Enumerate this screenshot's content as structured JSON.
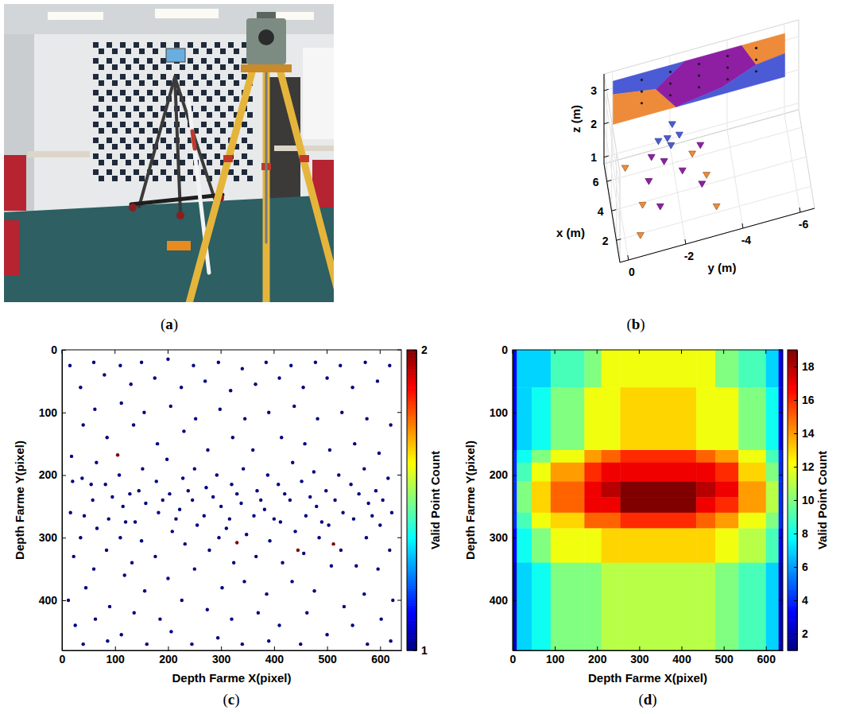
{
  "chart_data": [
    {
      "type": "image",
      "caption": "(a)"
    },
    {
      "type": "scatter3d",
      "caption": "(b)",
      "xlabel": "x (m)",
      "ylabel": "y (m)",
      "zlabel": "z (m)",
      "xlim": [
        0.5,
        7.2
      ],
      "ylim": [
        -6.5,
        0.3
      ],
      "zlim": [
        0.8,
        3.5
      ],
      "xticks": [
        2,
        4,
        6
      ],
      "yticks": [
        0,
        -2,
        -4,
        -6
      ],
      "zticks": [
        1,
        2,
        3
      ],
      "grid": true,
      "series": [
        {
          "color": "#ED8B3A",
          "x": [
            1.5,
            2.0,
            3.0,
            5.5,
            5.0,
            3.8
          ],
          "y": [
            -0.5,
            -3.2,
            -0.7,
            -0.3,
            -2.6,
            -3.0
          ],
          "z": [
            1.0,
            1.0,
            1.2,
            1.3,
            1.4,
            1.2
          ]
        },
        {
          "color": "#8E1FA3",
          "x": [
            2.8,
            3.3,
            4.0,
            4.3,
            4.8,
            5.3,
            5.2
          ],
          "y": [
            -1.3,
            -2.8,
            -1.0,
            -2.2,
            -1.6,
            -1.2,
            -2.9
          ],
          "z": [
            1.1,
            1.2,
            1.4,
            1.3,
            1.5,
            1.5,
            1.5
          ]
        },
        {
          "color": "#4B5BD6",
          "x": [
            5.8,
            6.0,
            5.6,
            6.2,
            5.5
          ],
          "y": [
            -1.8,
            -1.5,
            -2.2,
            -2.0,
            -1.9
          ],
          "z": [
            1.7,
            1.6,
            1.8,
            1.9,
            1.6
          ]
        }
      ],
      "plane_x": 7,
      "regions": [
        {
          "color": "#4B5BD6",
          "y": [
            0,
            -2.5,
            -1.5,
            0
          ],
          "z": [
            3.3,
            3.3,
            2.7,
            2.9
          ]
        },
        {
          "color": "#ED8B3A",
          "y": [
            0,
            -1.5,
            -2.2,
            0
          ],
          "z": [
            2.9,
            2.7,
            2.0,
            2.0
          ]
        },
        {
          "color": "#8E1FA3",
          "y": [
            -1.5,
            -2.5,
            -4.5,
            -5,
            -3.8,
            -2.2
          ],
          "z": [
            2.7,
            3.3,
            3.3,
            2.6,
            2.2,
            2.0
          ]
        },
        {
          "color": "#ED8B3A",
          "y": [
            -4.5,
            -6,
            -6,
            -5
          ],
          "z": [
            3.3,
            3.3,
            2.7,
            2.6
          ]
        },
        {
          "color": "#4B5BD6",
          "y": [
            -2.2,
            -3.8,
            -5,
            -6,
            -6
          ],
          "z": [
            2.0,
            2.2,
            2.6,
            2.7,
            2.0
          ]
        }
      ],
      "targets": {
        "y": [
          -1,
          -2,
          -3,
          -4,
          -5,
          -1,
          -2,
          -3,
          -4,
          -5,
          -1,
          -2,
          -3,
          -4,
          -5
        ],
        "z": [
          2.4,
          2.4,
          2.4,
          2.4,
          2.4,
          2.75,
          2.75,
          2.75,
          2.75,
          2.75,
          3.1,
          3.1,
          3.1,
          3.1,
          3.1
        ]
      }
    },
    {
      "type": "scatter",
      "caption": "(c)",
      "xlabel": "Depth Farme X(pixel)",
      "ylabel": "Depth Farme Y(pixel)",
      "xlim": [
        0,
        640
      ],
      "ylim": [
        480,
        0
      ],
      "xticks": [
        0,
        100,
        200,
        300,
        400,
        500,
        600
      ],
      "yticks": [
        0,
        100,
        200,
        300,
        400
      ],
      "series": [
        {
          "count": 1,
          "x": [
            15,
            18,
            20,
            16,
            22,
            12,
            25,
            35,
            40,
            38,
            42,
            35,
            45,
            40,
            60,
            62,
            65,
            58,
            66,
            60,
            63,
            80,
            85,
            82,
            88,
            84,
            90,
            86,
            110,
            112,
            108,
            115,
            110,
            118,
            112,
            130,
            135,
            128,
            138,
            132,
            136,
            150,
            155,
            152,
            158,
            150,
            156,
            160,
            175,
            180,
            178,
            182,
            176,
            185,
            200,
            205,
            198,
            203,
            208,
            200,
            206,
            225,
            230,
            228,
            222,
            232,
            226,
            248,
            252,
            250,
            246,
            255,
            250,
            245,
            270,
            275,
            272,
            268,
            278,
            274,
            295,
            298,
            292,
            300,
            296,
            302,
            294,
            318,
            322,
            320,
            316,
            324,
            320,
            340,
            345,
            342,
            338,
            348,
            344,
            340,
            365,
            360,
            368,
            362,
            366,
            370,
            385,
            390,
            388,
            382,
            392,
            386,
            390,
            410,
            414,
            408,
            412,
            416,
            410,
            432,
            438,
            435,
            430,
            440,
            434,
            455,
            458,
            452,
            460,
            456,
            462,
            450,
            478,
            482,
            475,
            480,
            485,
            476,
            500,
            505,
            498,
            503,
            508,
            500,
            525,
            528,
            522,
            530,
            526,
            532,
            548,
            552,
            545,
            550,
            555,
            548,
            572,
            575,
            570,
            578,
            574,
            570,
            576,
            595,
            598,
            592,
            600,
            596,
            602,
            618,
            620,
            615,
            622,
            618,
            624,
            620,
            55,
            95,
            145,
            190,
            238,
            285,
            330,
            375,
            420,
            468,
            515,
            560,
            605,
            120,
            215,
            310,
            400,
            490,
            585
          ],
          "y": [
            25,
            170,
            210,
            260,
            330,
            400,
            440,
            60,
            120,
            205,
            265,
            300,
            380,
            470,
            20,
            95,
            180,
            240,
            285,
            350,
            430,
            40,
            140,
            215,
            270,
            320,
            410,
            465,
            25,
            85,
            200,
            250,
            300,
            360,
            455,
            55,
            120,
            230,
            275,
            340,
            420,
            20,
            100,
            190,
            245,
            305,
            385,
            470,
            45,
            150,
            210,
            260,
            330,
            430,
            15,
            90,
            175,
            230,
            290,
            365,
            450,
            60,
            130,
            205,
            255,
            310,
            400,
            25,
            110,
            190,
            240,
            280,
            350,
            470,
            50,
            160,
            220,
            265,
            320,
            415,
            20,
            95,
            200,
            250,
            300,
            380,
            460,
            65,
            140,
            215,
            270,
            340,
            430,
            30,
            110,
            190,
            245,
            295,
            370,
            470,
            55,
            160,
            225,
            265,
            330,
            420,
            20,
            100,
            200,
            255,
            305,
            390,
            465,
            45,
            140,
            215,
            275,
            340,
            440,
            25,
            90,
            180,
            240,
            290,
            370,
            60,
            150,
            210,
            265,
            325,
            420,
            470,
            20,
            110,
            195,
            250,
            300,
            385,
            45,
            160,
            225,
            280,
            345,
            455,
            25,
            100,
            200,
            260,
            320,
            410,
            60,
            150,
            215,
            270,
            345,
            440,
            20,
            110,
            190,
            245,
            300,
            390,
            470,
            50,
            165,
            225,
            280,
            350,
            430,
            25,
            120,
            205,
            260,
            320,
            400,
            465,
            215,
            235,
            225,
            240,
            225,
            235,
            230,
            240,
            230,
            235,
            240,
            230,
            240,
            275,
            270,
            285,
            270,
            275,
            265
          ]
        },
        {
          "count": 2,
          "x": [
            105,
            330,
            445,
            512
          ],
          "y": [
            168,
            308,
            320,
            310
          ]
        }
      ],
      "colorbar": {
        "label": "Valid Point Count",
        "range": [
          1,
          2
        ],
        "ticks": [
          1,
          2
        ]
      }
    },
    {
      "type": "heatmap",
      "caption": "(d)",
      "xlabel": "Depth Farme X(pixel)",
      "ylabel": "Depth Farme Y(pixel)",
      "xlim": [
        0,
        640
      ],
      "ylim": [
        480,
        0
      ],
      "xticks": [
        0,
        100,
        200,
        300,
        400,
        500,
        600
      ],
      "yticks": [
        0,
        100,
        200,
        300,
        400
      ],
      "x_edges": [
        0,
        10,
        45,
        90,
        170,
        210,
        255,
        435,
        480,
        535,
        600,
        630,
        640
      ],
      "y_edges": [
        0,
        60,
        160,
        180,
        210,
        235,
        260,
        285,
        340,
        480
      ],
      "values": [
        [
          3,
          7,
          7,
          9,
          10,
          12,
          12,
          12,
          10,
          9,
          7,
          3
        ],
        [
          3,
          7,
          8,
          10,
          12,
          12,
          13,
          12,
          12,
          10,
          8,
          3
        ],
        [
          4,
          8,
          10,
          12,
          14,
          15,
          16,
          15,
          14,
          12,
          9,
          4
        ],
        [
          4,
          9,
          12,
          14,
          16,
          17,
          17,
          17,
          16,
          13,
          10,
          4
        ],
        [
          4,
          10,
          13,
          15,
          17,
          18,
          19,
          18,
          17,
          14,
          11,
          4
        ],
        [
          4,
          10,
          13,
          15,
          17,
          17,
          19,
          17,
          16,
          14,
          11,
          4
        ],
        [
          4,
          9,
          12,
          13,
          15,
          15,
          16,
          15,
          14,
          12,
          10,
          4
        ],
        [
          3,
          8,
          10,
          12,
          12,
          13,
          13,
          13,
          12,
          11,
          9,
          3
        ],
        [
          2,
          7,
          8,
          10,
          10,
          11,
          11,
          11,
          10,
          9,
          7,
          2
        ]
      ],
      "colorbar": {
        "label": "Valid Point Count",
        "range": [
          1,
          19
        ],
        "ticks": [
          2,
          4,
          6,
          8,
          10,
          12,
          14,
          16,
          18
        ]
      }
    }
  ]
}
